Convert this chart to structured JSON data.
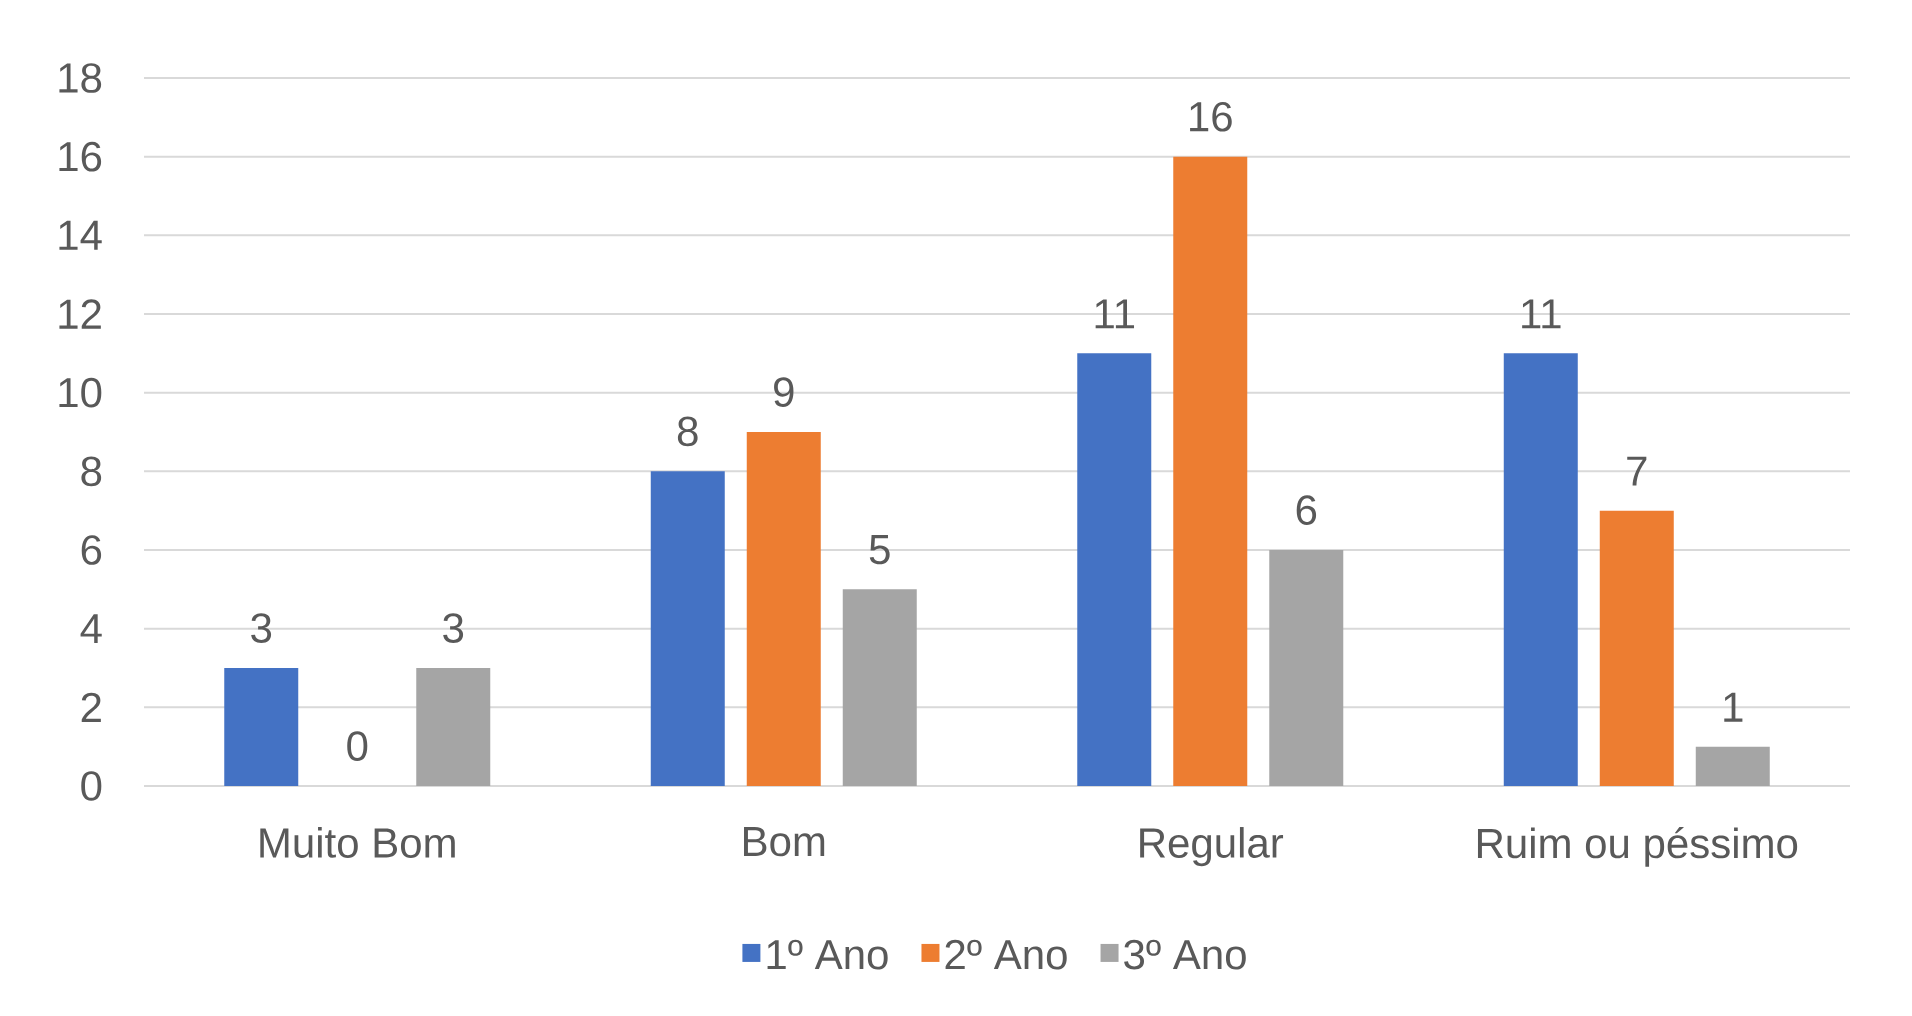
{
  "chart_data": {
    "type": "bar",
    "categories": [
      "Muito Bom",
      "Bom",
      "Regular",
      "Ruim ou péssimo"
    ],
    "series": [
      {
        "name": "1º Ano",
        "color": "#4472c4",
        "values": [
          3,
          8,
          11,
          11
        ]
      },
      {
        "name": "2º Ano",
        "color": "#ed7d31",
        "values": [
          0,
          9,
          16,
          7
        ]
      },
      {
        "name": "3º Ano",
        "color": "#a5a5a5",
        "values": [
          3,
          5,
          6,
          1
        ]
      }
    ],
    "ylim": [
      0,
      18
    ],
    "yticks": [
      0,
      2,
      4,
      6,
      8,
      10,
      12,
      14,
      16,
      18
    ],
    "grid": "y",
    "legend": "bottom",
    "data_labels": true
  }
}
